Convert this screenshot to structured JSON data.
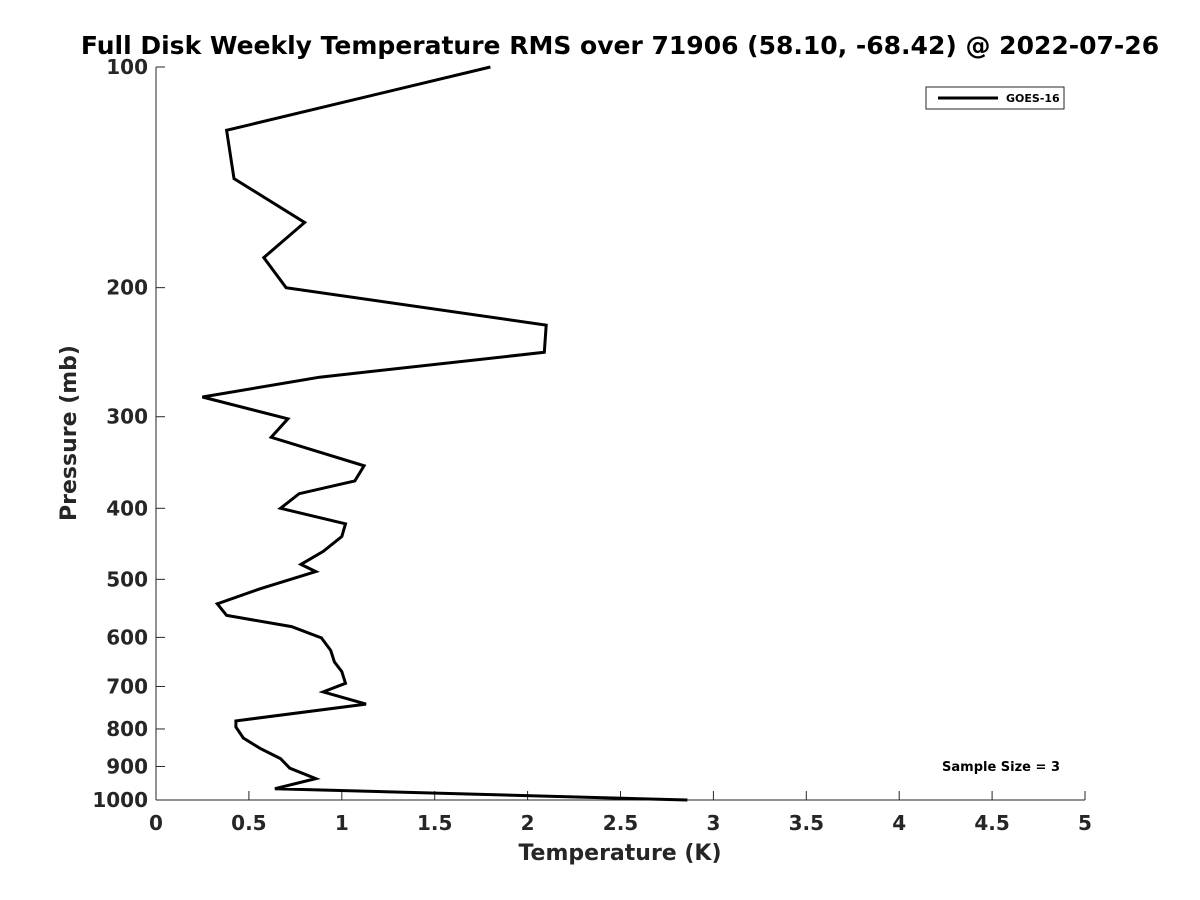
{
  "chart_data": {
    "type": "line",
    "title": "Full Disk Weekly Temperature RMS over 71906 (58.10, -68.42) @ 2022-07-26",
    "xlabel": "Temperature (K)",
    "ylabel": "Pressure (mb)",
    "xlim": [
      0,
      5
    ],
    "ylim": [
      100,
      1000
    ],
    "y_scale": "log",
    "y_reversed": true,
    "grid": false,
    "legend_position": "top-right",
    "x_ticks": [
      0,
      0.5,
      1,
      1.5,
      2,
      2.5,
      3,
      3.5,
      4,
      4.5,
      5
    ],
    "x_tick_labels": [
      "0",
      "0.5",
      "1",
      "1.5",
      "2",
      "2.5",
      "3",
      "3.5",
      "4",
      "4.5",
      "5"
    ],
    "y_ticks": [
      100,
      200,
      300,
      400,
      500,
      600,
      700,
      800,
      900,
      1000
    ],
    "y_tick_labels": [
      "100",
      "200",
      "300",
      "400",
      "500",
      "600",
      "700",
      "800",
      "900",
      "1000"
    ],
    "series": [
      {
        "name": "GOES-16",
        "color": "#000000",
        "x": [
          1.8,
          0.38,
          0.42,
          0.8,
          0.58,
          0.7,
          2.1,
          2.09,
          0.88,
          0.25,
          0.71,
          0.62,
          1.12,
          1.07,
          0.77,
          0.67,
          1.02,
          1.0,
          0.9,
          0.78,
          0.86,
          0.56,
          0.33,
          0.38,
          0.73,
          0.89,
          0.94,
          0.96,
          1.0,
          1.02,
          0.9,
          1.13,
          0.43,
          0.43,
          0.47,
          0.56,
          0.67,
          0.72,
          0.86,
          0.64,
          2.86
        ],
        "y": [
          100,
          122,
          142,
          163,
          182,
          200,
          225,
          245,
          265,
          282,
          302,
          320,
          350,
          367,
          382,
          400,
          420,
          437,
          458,
          477,
          488,
          515,
          540,
          560,
          580,
          601,
          625,
          648,
          668,
          693,
          712,
          740,
          780,
          795,
          823,
          850,
          878,
          905,
          935,
          965,
          1000
        ]
      }
    ],
    "annotations": [
      "Sample Size = 3"
    ]
  }
}
